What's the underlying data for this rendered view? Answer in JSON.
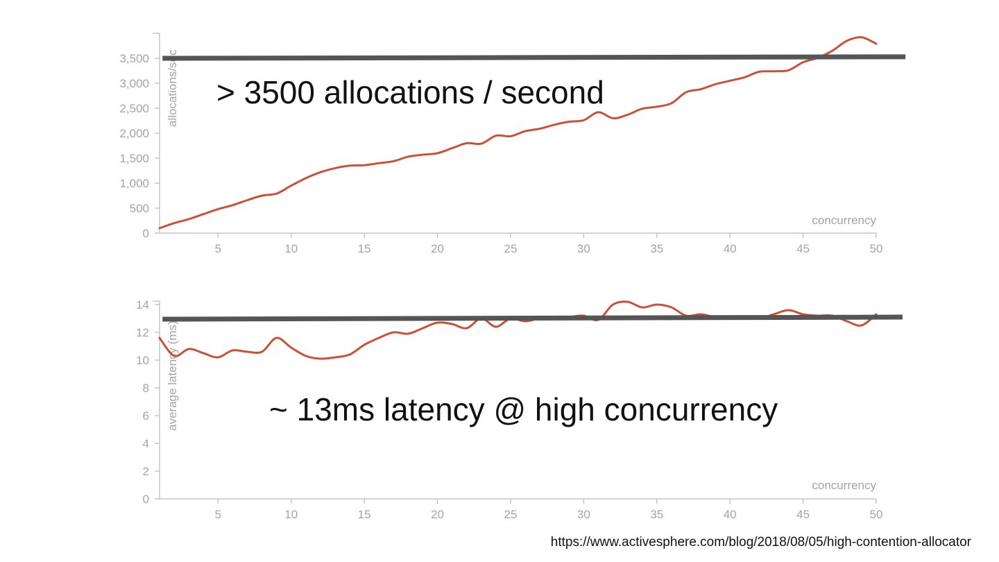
{
  "colors": {
    "series": "#cc5037",
    "reference": "#555555",
    "axis": "#c6c6c6",
    "tick_text": "#a3a3a3",
    "annotation": "#111111"
  },
  "source_url": "https://www.activesphere.com/blog/2018/08/05/high-contention-allocator",
  "chart_data": [
    {
      "type": "line",
      "ylabel": "allocations/sec",
      "xlabel": "concurrency",
      "xlim": [
        1,
        50
      ],
      "ylim": [
        0,
        4000
      ],
      "xticks": [
        5,
        10,
        15,
        20,
        25,
        30,
        35,
        40,
        45,
        50
      ],
      "yticks": [
        0,
        500,
        1000,
        1500,
        2000,
        2500,
        3000,
        3500
      ],
      "ytick_labels": [
        "0",
        "500",
        "1,000",
        "1,500",
        "2,000",
        "2,500",
        "3,000",
        "3,500"
      ],
      "grid": false,
      "reference_line": {
        "y_start": 3500,
        "y_end": 3530,
        "x_start": 1.2,
        "x_end": 52
      },
      "annotation": "> 3500 allocations / second",
      "series": [
        {
          "x": [
            1,
            2,
            3,
            4,
            5,
            6,
            7,
            8,
            9,
            10,
            11,
            12,
            13,
            14,
            15,
            16,
            17,
            18,
            19,
            20,
            21,
            22,
            23,
            24,
            25,
            26,
            27,
            28,
            29,
            30,
            31,
            32,
            33,
            34,
            35,
            36,
            37,
            38,
            39,
            40,
            41,
            42,
            43,
            44,
            45,
            46,
            47,
            48,
            49,
            50
          ],
          "y": [
            100,
            200,
            280,
            380,
            480,
            560,
            660,
            750,
            790,
            950,
            1100,
            1220,
            1300,
            1350,
            1360,
            1400,
            1440,
            1530,
            1570,
            1600,
            1700,
            1800,
            1790,
            1950,
            1940,
            2040,
            2090,
            2170,
            2230,
            2260,
            2420,
            2300,
            2370,
            2490,
            2530,
            2600,
            2820,
            2880,
            2980,
            3050,
            3120,
            3230,
            3240,
            3260,
            3420,
            3510,
            3650,
            3850,
            3920,
            3790
          ]
        }
      ]
    },
    {
      "type": "line",
      "ylabel": "average latency (ms)",
      "xlabel": "concurrency",
      "xlim": [
        1,
        50
      ],
      "ylim": [
        0,
        14.5
      ],
      "xticks": [
        5,
        10,
        15,
        20,
        25,
        30,
        35,
        40,
        45,
        50
      ],
      "yticks": [
        0,
        2,
        4,
        6,
        8,
        10,
        12,
        14
      ],
      "ytick_labels": [
        "0",
        "2",
        "4",
        "6",
        "8",
        "10",
        "12",
        "14"
      ],
      "grid": false,
      "reference_line": {
        "y_start": 12.95,
        "y_end": 13.1,
        "x_start": 1.2,
        "x_end": 51.8
      },
      "annotation": "~ 13ms latency @ high concurrency",
      "series": [
        {
          "x": [
            1,
            2,
            3,
            4,
            5,
            6,
            7,
            8,
            9,
            10,
            11,
            12,
            13,
            14,
            15,
            16,
            17,
            18,
            19,
            20,
            21,
            22,
            23,
            24,
            25,
            26,
            27,
            28,
            29,
            30,
            31,
            32,
            33,
            34,
            35,
            36,
            37,
            38,
            39,
            40,
            41,
            42,
            43,
            44,
            45,
            46,
            47,
            48,
            49,
            50
          ],
          "y": [
            11.6,
            10.3,
            10.8,
            10.5,
            10.2,
            10.7,
            10.6,
            10.6,
            11.6,
            10.9,
            10.3,
            10.1,
            10.2,
            10.4,
            11.1,
            11.6,
            12.0,
            11.9,
            12.3,
            12.7,
            12.6,
            12.3,
            13.0,
            12.4,
            13.0,
            12.8,
            13.0,
            13.0,
            13.1,
            13.2,
            12.9,
            14.0,
            14.2,
            13.8,
            14.0,
            13.8,
            13.2,
            13.3,
            13.1,
            13.1,
            13.1,
            13.0,
            13.3,
            13.6,
            13.3,
            13.2,
            13.2,
            12.8,
            12.5,
            13.3
          ]
        }
      ]
    }
  ]
}
